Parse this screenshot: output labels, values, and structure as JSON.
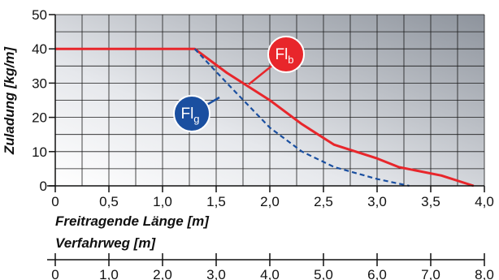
{
  "chart_data": {
    "type": "line",
    "ylabel": "Zuladung [kg/m]",
    "xlabel": "Freitragende Länge [m]",
    "xlabel2": "Verfahrweg [m]",
    "xlim": [
      0,
      4.0
    ],
    "ylim": [
      0,
      50
    ],
    "x2lim": [
      0,
      8.0
    ],
    "grid": true,
    "x_ticks": [
      "0",
      "0,5",
      "1,0",
      "1,5",
      "2,0",
      "2,5",
      "3,0",
      "3,5",
      "4,0"
    ],
    "x_tick_values": [
      0,
      0.5,
      1.0,
      1.5,
      2.0,
      2.5,
      3.0,
      3.5,
      4.0
    ],
    "x2_ticks": [
      "0",
      "1,0",
      "2,0",
      "3,0",
      "4,0",
      "5,0",
      "6,0",
      "7,0",
      "8,0"
    ],
    "x2_tick_values": [
      0,
      1.0,
      2.0,
      3.0,
      4.0,
      5.0,
      6.0,
      7.0,
      8.0
    ],
    "y_ticks": [
      "0",
      "10",
      "20",
      "30",
      "40",
      "50"
    ],
    "y_tick_values": [
      0,
      10,
      20,
      30,
      40,
      50
    ],
    "series": [
      {
        "name": "Flb",
        "label_main": "Fl",
        "label_sub": "b",
        "color": "#e8262b",
        "style": "solid",
        "x": [
          0,
          1.3,
          1.6,
          2.0,
          2.3,
          2.6,
          3.0,
          3.2,
          3.6,
          3.9
        ],
        "y": [
          40,
          40,
          33,
          25,
          18,
          12,
          8,
          5.5,
          3,
          0
        ]
      },
      {
        "name": "Flg",
        "label_main": "Fl",
        "label_sub": "g",
        "color": "#1a4fa0",
        "style": "dashed",
        "x": [
          1.3,
          1.6,
          2.0,
          2.3,
          2.6,
          3.0,
          3.3
        ],
        "y": [
          40,
          30,
          17,
          10,
          5.5,
          2,
          0
        ]
      }
    ]
  }
}
